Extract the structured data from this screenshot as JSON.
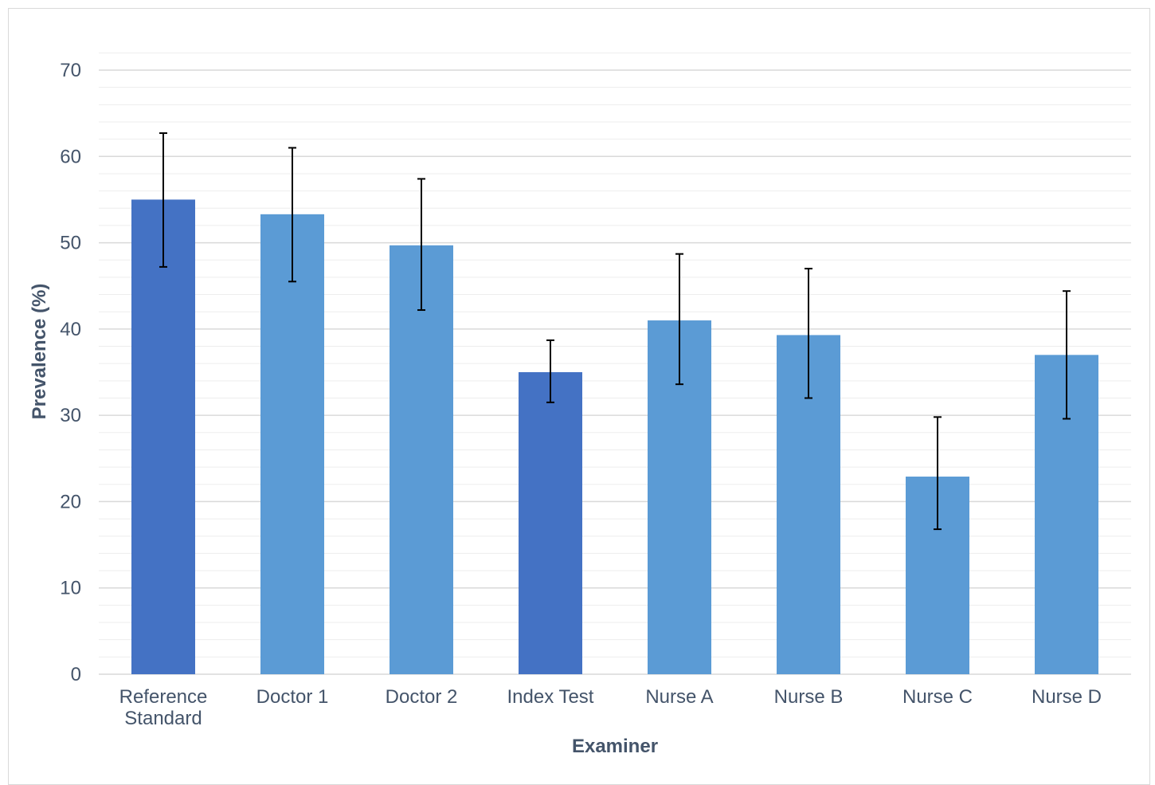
{
  "chart_data": {
    "type": "bar",
    "title": "",
    "xlabel": "Examiner",
    "ylabel": "Prevalence (%)",
    "ylim": [
      0,
      70
    ],
    "yticks": [
      0,
      10,
      20,
      30,
      40,
      50,
      60,
      70
    ],
    "grid": true,
    "minor_grid": true,
    "legend": "none",
    "categories": [
      [
        "Reference",
        "Standard"
      ],
      [
        "Doctor 1"
      ],
      [
        "Doctor 2"
      ],
      [
        "Index Test"
      ],
      [
        "Nurse A"
      ],
      [
        "Nurse B"
      ],
      [
        "Nurse C"
      ],
      [
        "Nurse D"
      ]
    ],
    "values": [
      55.0,
      53.3,
      49.7,
      35.0,
      41.0,
      39.3,
      22.9,
      37.0
    ],
    "error_low": [
      47.2,
      45.5,
      42.2,
      31.5,
      33.6,
      32.0,
      16.8,
      29.6
    ],
    "error_high": [
      62.7,
      61.0,
      57.4,
      38.7,
      48.7,
      47.0,
      29.8,
      44.4
    ],
    "bar_colors": [
      "#4472c4",
      "#5b9bd5",
      "#5b9bd5",
      "#4472c4",
      "#5b9bd5",
      "#5b9bd5",
      "#5b9bd5",
      "#5b9bd5"
    ],
    "error_bar_color": "#000000",
    "gridline_color": "#d9d9d9",
    "minor_gridline_color": "#ededed",
    "text_color": "#44546a"
  }
}
